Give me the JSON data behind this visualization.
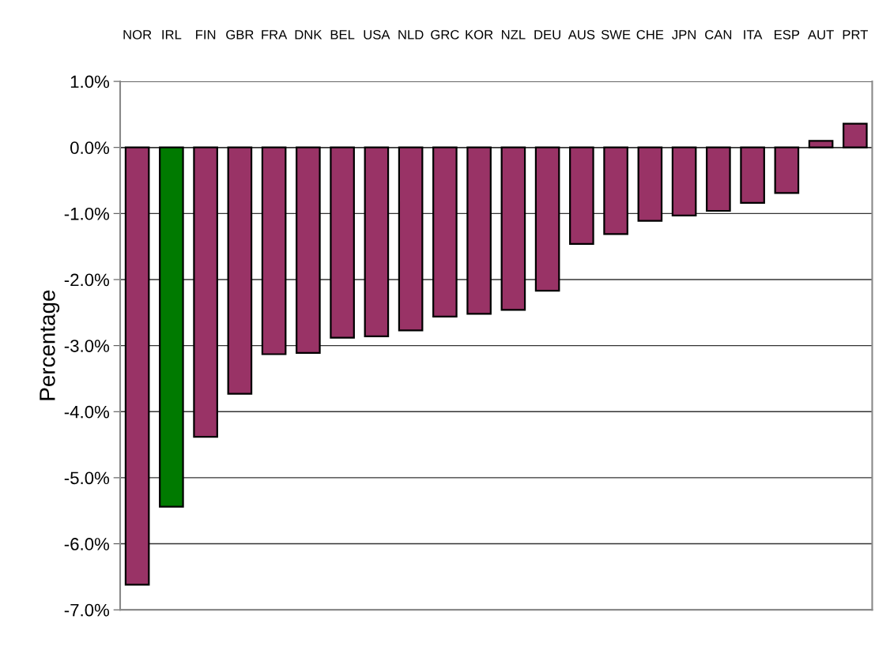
{
  "chart_data": {
    "type": "bar",
    "ylabel": "Percentage",
    "categories": [
      "NOR",
      "IRL",
      "FIN",
      "GBR",
      "FRA",
      "DNK",
      "BEL",
      "USA",
      "NLD",
      "GRC",
      "KOR",
      "NZL",
      "DEU",
      "AUS",
      "SWE",
      "CHE",
      "JPN",
      "CAN",
      "ITA",
      "ESP",
      "AUT",
      "PRT"
    ],
    "values": [
      -6.62,
      -5.44,
      -4.38,
      -3.73,
      -3.13,
      -3.11,
      -2.88,
      -2.86,
      -2.77,
      -2.56,
      -2.52,
      -2.46,
      -2.17,
      -1.46,
      -1.31,
      -1.11,
      -1.03,
      -0.96,
      -0.84,
      -0.69,
      0.1,
      0.36
    ],
    "colors": [
      "#993366",
      "#007a00",
      "#993366",
      "#993366",
      "#993366",
      "#993366",
      "#993366",
      "#993366",
      "#993366",
      "#993366",
      "#993366",
      "#993366",
      "#993366",
      "#993366",
      "#993366",
      "#993366",
      "#993366",
      "#993366",
      "#993366",
      "#993366",
      "#993366",
      "#993366"
    ],
    "ylim": [
      -7,
      1
    ],
    "yticks": [
      {
        "value": 1,
        "label": "1.0%"
      },
      {
        "value": 0,
        "label": "0.0%"
      },
      {
        "value": -1,
        "label": "-1.0%"
      },
      {
        "value": -2,
        "label": "-2.0%"
      },
      {
        "value": -3,
        "label": "-3.0%"
      },
      {
        "value": -4,
        "label": "-4.0%"
      },
      {
        "value": -5,
        "label": "-5.0%"
      },
      {
        "value": -6,
        "label": "-6.0%"
      },
      {
        "value": -7,
        "label": "-7.0%"
      }
    ],
    "grid": "y"
  }
}
